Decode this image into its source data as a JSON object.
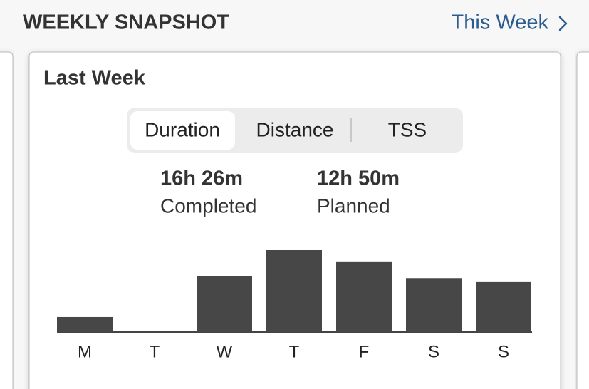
{
  "header": {
    "title": "WEEKLY SNAPSHOT",
    "link": "This Week"
  },
  "card": {
    "title": "Last Week",
    "tabs": [
      "Duration",
      "Distance",
      "TSS"
    ],
    "stats": [
      {
        "value": "16h 26m",
        "label": "Completed"
      },
      {
        "value": "12h 50m",
        "label": "Planned"
      }
    ]
  },
  "chart_data": {
    "type": "bar",
    "categories": [
      "M",
      "T",
      "W",
      "T",
      "F",
      "S",
      "S"
    ],
    "values": [
      0.75,
      0,
      2.8,
      4.1,
      3.5,
      2.7,
      2.5
    ],
    "color": "#474747"
  }
}
